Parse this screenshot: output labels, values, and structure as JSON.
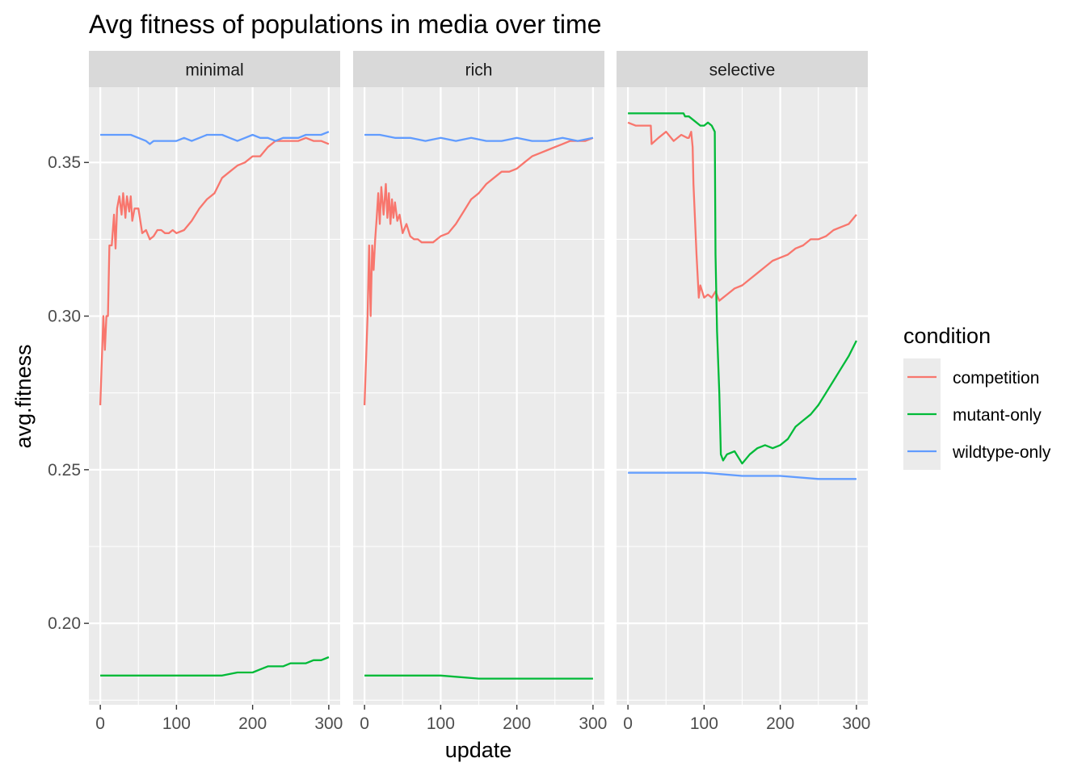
{
  "chart_data": {
    "type": "line",
    "title": "Avg fitness of populations in media over time",
    "xlabel": "update",
    "ylabel": "avg.fitness",
    "xlim": [
      -15,
      315
    ],
    "ylim": [
      0.1735,
      0.3745
    ],
    "x_ticks": [
      0,
      100,
      200,
      300
    ],
    "x_tick_labels": [
      "0",
      "100",
      "200",
      "300"
    ],
    "y_ticks": [
      0.2,
      0.25,
      0.3,
      0.35
    ],
    "y_tick_labels": [
      "0.20",
      "0.25",
      "0.30",
      "0.35"
    ],
    "grid": true,
    "legend": {
      "title": "condition",
      "position": "right",
      "entries": [
        "competition",
        "mutant-only",
        "wildtype-only"
      ]
    },
    "colors": {
      "competition": "#F8766D",
      "mutant-only": "#00BA38",
      "wildtype-only": "#619CFF"
    },
    "panels": [
      {
        "facet": "minimal",
        "series": [
          {
            "name": "competition",
            "x": [
              0,
              4,
              6,
              8,
              10,
              12,
              15,
              18,
              20,
              22,
              25,
              28,
              30,
              33,
              35,
              38,
              40,
              42,
              45,
              50,
              55,
              60,
              65,
              70,
              75,
              80,
              85,
              90,
              95,
              100,
              110,
              120,
              130,
              140,
              150,
              160,
              170,
              180,
              190,
              200,
              210,
              220,
              230,
              240,
              250,
              260,
              270,
              280,
              290,
              300
            ],
            "values": [
              0.271,
              0.3,
              0.289,
              0.3,
              0.3,
              0.323,
              0.323,
              0.333,
              0.322,
              0.335,
              0.339,
              0.333,
              0.34,
              0.332,
              0.339,
              0.334,
              0.339,
              0.331,
              0.335,
              0.335,
              0.327,
              0.328,
              0.325,
              0.326,
              0.328,
              0.328,
              0.327,
              0.327,
              0.328,
              0.327,
              0.328,
              0.331,
              0.335,
              0.338,
              0.34,
              0.345,
              0.347,
              0.349,
              0.35,
              0.352,
              0.352,
              0.355,
              0.357,
              0.357,
              0.357,
              0.357,
              0.358,
              0.357,
              0.357,
              0.356
            ]
          },
          {
            "name": "mutant-only",
            "x": [
              0,
              20,
              40,
              60,
              80,
              100,
              120,
              140,
              160,
              180,
              200,
              210,
              220,
              230,
              240,
              250,
              260,
              270,
              280,
              290,
              300
            ],
            "values": [
              0.183,
              0.183,
              0.183,
              0.183,
              0.183,
              0.183,
              0.183,
              0.183,
              0.183,
              0.184,
              0.184,
              0.185,
              0.186,
              0.186,
              0.186,
              0.187,
              0.187,
              0.187,
              0.188,
              0.188,
              0.189
            ]
          },
          {
            "name": "wildtype-only",
            "x": [
              0,
              20,
              40,
              50,
              60,
              65,
              70,
              80,
              90,
              100,
              110,
              120,
              130,
              140,
              150,
              160,
              170,
              180,
              190,
              200,
              210,
              220,
              230,
              240,
              250,
              260,
              270,
              280,
              290,
              300
            ],
            "values": [
              0.359,
              0.359,
              0.359,
              0.358,
              0.357,
              0.356,
              0.357,
              0.357,
              0.357,
              0.357,
              0.358,
              0.357,
              0.358,
              0.359,
              0.359,
              0.359,
              0.358,
              0.357,
              0.358,
              0.359,
              0.358,
              0.358,
              0.357,
              0.358,
              0.358,
              0.358,
              0.359,
              0.359,
              0.359,
              0.36
            ]
          }
        ]
      },
      {
        "facet": "rich",
        "series": [
          {
            "name": "competition",
            "x": [
              0,
              4,
              6,
              8,
              10,
              12,
              14,
              16,
              18,
              20,
              22,
              25,
              28,
              30,
              32,
              34,
              36,
              38,
              40,
              43,
              46,
              50,
              55,
              60,
              65,
              70,
              75,
              80,
              85,
              90,
              95,
              100,
              110,
              120,
              130,
              140,
              150,
              160,
              170,
              180,
              190,
              200,
              210,
              220,
              230,
              240,
              250,
              260,
              270,
              280,
              290,
              300
            ],
            "values": [
              0.271,
              0.3,
              0.323,
              0.3,
              0.323,
              0.315,
              0.325,
              0.332,
              0.34,
              0.33,
              0.342,
              0.333,
              0.343,
              0.332,
              0.34,
              0.33,
              0.338,
              0.332,
              0.337,
              0.331,
              0.333,
              0.327,
              0.33,
              0.326,
              0.325,
              0.325,
              0.324,
              0.324,
              0.324,
              0.324,
              0.325,
              0.326,
              0.327,
              0.33,
              0.334,
              0.338,
              0.34,
              0.343,
              0.345,
              0.347,
              0.347,
              0.348,
              0.35,
              0.352,
              0.353,
              0.354,
              0.355,
              0.356,
              0.357,
              0.357,
              0.357,
              0.358
            ]
          },
          {
            "name": "mutant-only",
            "x": [
              0,
              50,
              100,
              150,
              200,
              250,
              300
            ],
            "values": [
              0.183,
              0.183,
              0.183,
              0.182,
              0.182,
              0.182,
              0.182
            ]
          },
          {
            "name": "wildtype-only",
            "x": [
              0,
              20,
              40,
              60,
              80,
              100,
              120,
              140,
              160,
              180,
              200,
              220,
              240,
              260,
              280,
              300
            ],
            "values": [
              0.359,
              0.359,
              0.358,
              0.358,
              0.357,
              0.358,
              0.357,
              0.358,
              0.357,
              0.357,
              0.358,
              0.357,
              0.357,
              0.358,
              0.357,
              0.358
            ]
          }
        ]
      },
      {
        "facet": "selective",
        "series": [
          {
            "name": "competition",
            "x": [
              0,
              10,
              20,
              30,
              31,
              40,
              50,
              60,
              70,
              78,
              80,
              83,
              85,
              86,
              90,
              93,
              95,
              100,
              105,
              110,
              115,
              120,
              125,
              130,
              140,
              150,
              160,
              170,
              180,
              190,
              200,
              210,
              220,
              230,
              240,
              250,
              260,
              270,
              280,
              290,
              300
            ],
            "values": [
              0.363,
              0.362,
              0.362,
              0.362,
              0.356,
              0.358,
              0.36,
              0.357,
              0.359,
              0.358,
              0.358,
              0.36,
              0.355,
              0.343,
              0.32,
              0.306,
              0.31,
              0.306,
              0.307,
              0.306,
              0.308,
              0.305,
              0.306,
              0.307,
              0.309,
              0.31,
              0.312,
              0.314,
              0.316,
              0.318,
              0.319,
              0.32,
              0.322,
              0.323,
              0.325,
              0.325,
              0.326,
              0.328,
              0.329,
              0.33,
              0.333
            ]
          },
          {
            "name": "mutant-only",
            "x": [
              0,
              20,
              40,
              60,
              73,
              75,
              80,
              90,
              95,
              100,
              105,
              110,
              114,
              115,
              117,
              120,
              122,
              125,
              130,
              140,
              150,
              160,
              170,
              180,
              190,
              200,
              210,
              220,
              230,
              240,
              250,
              260,
              270,
              280,
              290,
              300
            ],
            "values": [
              0.366,
              0.366,
              0.366,
              0.366,
              0.366,
              0.365,
              0.365,
              0.363,
              0.362,
              0.362,
              0.363,
              0.362,
              0.36,
              0.32,
              0.295,
              0.275,
              0.255,
              0.253,
              0.255,
              0.256,
              0.252,
              0.255,
              0.257,
              0.258,
              0.257,
              0.258,
              0.26,
              0.264,
              0.266,
              0.268,
              0.271,
              0.275,
              0.279,
              0.283,
              0.287,
              0.292
            ]
          },
          {
            "name": "wildtype-only",
            "x": [
              0,
              50,
              100,
              150,
              200,
              250,
              300
            ],
            "values": [
              0.249,
              0.249,
              0.249,
              0.248,
              0.248,
              0.247,
              0.247
            ]
          }
        ]
      }
    ]
  }
}
